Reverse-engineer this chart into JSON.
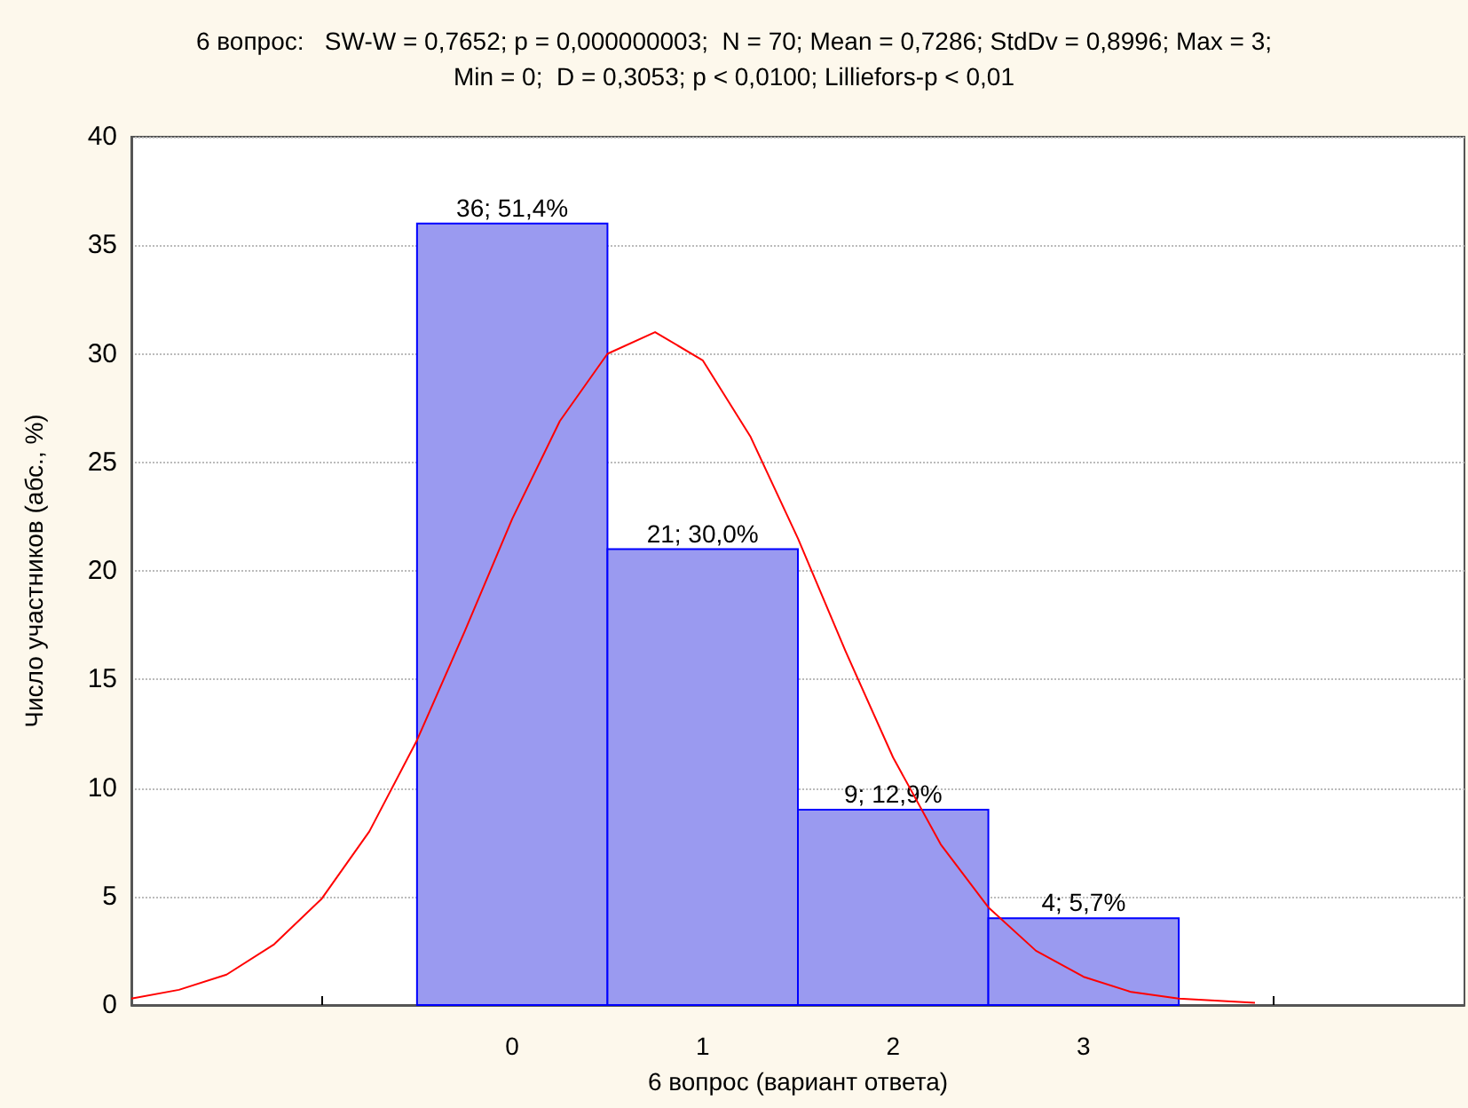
{
  "chart_data": {
    "type": "histogram",
    "title": "6 вопрос:   SW-W = 0,7652; p = 0,000000003;  N = 70; Mean = 0,7286; StdDv = 0,8996; Max = 3;\nMin = 0;  D = 0,3053; p < 0,0100; Lilliefors-p < 0,01",
    "xlabel": "6 вопрос (вариант ответа)",
    "ylabel": "Число участников (абс., %)",
    "bins": [
      -0.5,
      0.5,
      1.5,
      2.5,
      3.5
    ],
    "values": [
      36,
      21,
      9,
      4
    ],
    "color": "#9a9af0",
    "value_labels": [
      "36; 51,4%",
      "21; 30,0%",
      "9; 12,9%",
      "4; 5,7%"
    ],
    "series": [
      {
        "type": "line",
        "color": "#ff0000",
        "x": [
          -2,
          -1.75,
          -1.5,
          -1.25,
          -1,
          -0.75,
          -0.5,
          -0.25,
          0,
          0.25,
          0.5,
          0.75,
          1,
          1.25,
          1.5,
          1.75,
          2,
          2.25,
          2.5,
          2.75,
          3,
          3.25,
          3.5,
          3.9
        ],
        "values": [
          0.3,
          0.7,
          1.4,
          2.8,
          4.9,
          8,
          12.2,
          17.2,
          22.4,
          26.9,
          30,
          31,
          29.7,
          26.2,
          21.5,
          16.3,
          11.4,
          7.4,
          4.5,
          2.5,
          1.3,
          0.6,
          0.3,
          0.1
        ]
      }
    ],
    "marker": "none",
    "line_style": "solid",
    "xlim": [
      -2,
      5
    ],
    "xticks": [
      {
        "value": -1,
        "label": null
      },
      0,
      1,
      2,
      3,
      {
        "value": 4,
        "label": null
      }
    ],
    "ylim": [
      0,
      40
    ],
    "yticks": [
      0,
      5,
      10,
      15,
      20,
      25,
      30,
      35,
      40
    ],
    "grid": "y"
  }
}
